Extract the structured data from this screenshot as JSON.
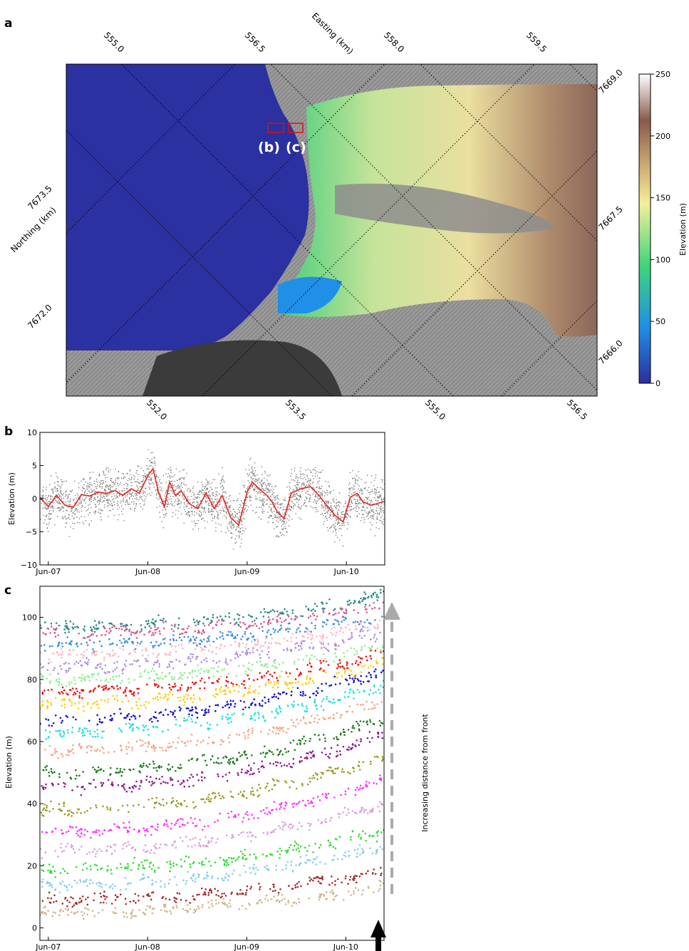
{
  "panel_labels": {
    "a": "a",
    "b": "b",
    "c": "c"
  },
  "map": {
    "easting_label": "Easting (km)",
    "northing_label": "Northing (km)",
    "easting_ticks_top": [
      "555.0",
      "556.5",
      "558.0",
      "559.5"
    ],
    "easting_ticks_bottom": [
      "552.0",
      "553.5",
      "555.0",
      "556.5"
    ],
    "northing_ticks_left": [
      "7673.5",
      "7672.0"
    ],
    "northing_ticks_right": [
      "7669.0",
      "7667.5",
      "7666.0"
    ],
    "box_labels": [
      "(b)",
      "(c)"
    ],
    "colorbar": {
      "label": "Elevation (m)",
      "ticks": [
        "250",
        "200",
        "150",
        "100",
        "50",
        "0"
      ],
      "colors": [
        "#2b2f9e",
        "#1f8fe8",
        "#3dd67a",
        "#f5ef9a",
        "#d6b77a",
        "#8a5a4a",
        "#ffffff"
      ]
    }
  },
  "annotation": {
    "arrow_text": "Increasing distance from front"
  },
  "chart_data": [
    {
      "type": "scatter",
      "panel": "b",
      "ylabel": "Elevation (m)",
      "xlabel": "",
      "x_ticks": [
        "Jun-07",
        "Jun-08",
        "Jun-09",
        "Jun-10"
      ],
      "y_ticks": [
        "10",
        "5",
        "0",
        "−5",
        "−10"
      ],
      "ylim": [
        -10,
        10
      ],
      "xlim": [
        "2007-05-01",
        "2010-10-20"
      ],
      "series": [
        {
          "color": "#7f7f7f",
          "kind": "scatter",
          "spread": 2.5
        },
        {
          "color": "#e8241c",
          "kind": "line",
          "points": [
            [
              "2007-05-01",
              0.2
            ],
            [
              "2007-06-01",
              -1.2
            ],
            [
              "2007-07-01",
              0.5
            ],
            [
              "2007-08-01",
              -1.0
            ],
            [
              "2007-09-01",
              -1.3
            ],
            [
              "2007-10-01",
              0.6
            ],
            [
              "2007-11-01",
              0.4
            ],
            [
              "2007-12-01",
              1.0
            ],
            [
              "2008-01-01",
              0.8
            ],
            [
              "2008-02-01",
              1.2
            ],
            [
              "2008-03-01",
              0.5
            ],
            [
              "2008-04-01",
              1.5
            ],
            [
              "2008-05-01",
              0.8
            ],
            [
              "2008-06-01",
              3.5
            ],
            [
              "2008-06-20",
              4.5
            ],
            [
              "2008-07-10",
              1.0
            ],
            [
              "2008-08-01",
              -1.2
            ],
            [
              "2008-08-20",
              2.5
            ],
            [
              "2008-09-10",
              0.5
            ],
            [
              "2008-10-01",
              1.2
            ],
            [
              "2008-11-01",
              -0.8
            ],
            [
              "2008-12-01",
              -1.5
            ],
            [
              "2009-01-01",
              0.8
            ],
            [
              "2009-02-01",
              -1.5
            ],
            [
              "2009-03-01",
              0.5
            ],
            [
              "2009-04-01",
              -2.8
            ],
            [
              "2009-05-01",
              -4.0
            ],
            [
              "2009-06-01",
              1.0
            ],
            [
              "2009-06-20",
              2.5
            ],
            [
              "2009-07-15",
              1.5
            ],
            [
              "2009-08-10",
              0.6
            ],
            [
              "2009-09-01",
              -0.5
            ],
            [
              "2009-09-20",
              -2.0
            ],
            [
              "2009-10-15",
              -3.0
            ],
            [
              "2009-11-10",
              0.8
            ],
            [
              "2009-12-15",
              1.5
            ],
            [
              "2010-01-20",
              1.8
            ],
            [
              "2010-02-20",
              0.5
            ],
            [
              "2010-03-20",
              -1.0
            ],
            [
              "2010-04-20",
              -2.5
            ],
            [
              "2010-05-20",
              -3.5
            ],
            [
              "2010-06-15",
              0.2
            ],
            [
              "2010-07-10",
              0.8
            ],
            [
              "2010-08-01",
              -0.5
            ],
            [
              "2010-09-01",
              -1.0
            ],
            [
              "2010-10-20",
              -0.4
            ]
          ]
        }
      ]
    },
    {
      "type": "scatter",
      "panel": "c",
      "ylabel": "Elevation (m)",
      "xlabel": "",
      "x_ticks": [
        "Jun-07",
        "Jun-08",
        "Jun-09",
        "Jun-10"
      ],
      "y_ticks": [
        "100",
        "80",
        "60",
        "40",
        "20",
        "0"
      ],
      "ylim": [
        -4,
        110
      ],
      "xlim": [
        "2007-05-01",
        "2010-10-20"
      ],
      "series": [
        {
          "color": "#d2b48c",
          "start": 5,
          "end": 13
        },
        {
          "color": "#a52a2a",
          "start": 9,
          "end": 18
        },
        {
          "color": "#87ceeb",
          "start": 14,
          "end": 26
        },
        {
          "color": "#33dd33",
          "start": 19,
          "end": 31
        },
        {
          "color": "#dda0dd",
          "start": 25,
          "end": 40
        },
        {
          "color": "#ff33ff",
          "start": 31,
          "end": 48
        },
        {
          "color": "#999922",
          "start": 38,
          "end": 55
        },
        {
          "color": "#8b1a8b",
          "start": 45,
          "end": 62
        },
        {
          "color": "#1a7a1a",
          "start": 50,
          "end": 67
        },
        {
          "color": "#f4a582",
          "start": 57,
          "end": 73
        },
        {
          "color": "#22e0e0",
          "start": 63,
          "end": 78
        },
        {
          "color": "#1010cc",
          "start": 67,
          "end": 83
        },
        {
          "color": "#ffcc00",
          "start": 72,
          "end": 86
        },
        {
          "color": "#ee1111",
          "start": 76,
          "end": 88
        },
        {
          "color": "#90ee90",
          "start": 80,
          "end": 91
        },
        {
          "color": "#b08ee0",
          "start": 84,
          "end": 95
        },
        {
          "color": "#ffb6c1",
          "start": 88,
          "end": 98
        },
        {
          "color": "#3a8ee6",
          "start": 91,
          "end": 101
        },
        {
          "color": "#d45a8e",
          "start": 95,
          "end": 104
        },
        {
          "color": "#2a8a8a",
          "start": 97,
          "end": 107
        }
      ]
    }
  ]
}
